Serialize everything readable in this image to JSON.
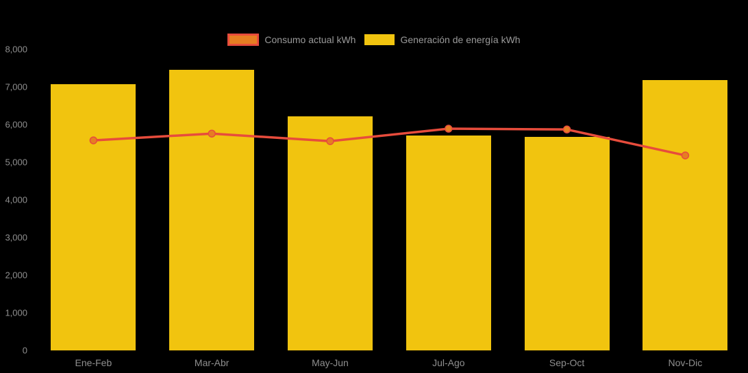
{
  "page": {
    "background": "#000000",
    "axis_text_color": "#8f8f8f",
    "legend_text_color": "#9a9a9a"
  },
  "legend": {
    "items": [
      {
        "label": "Consumo actual kWh",
        "series_type": "line",
        "swatch_fill": "#E67E22",
        "swatch_border": "#E74C3C"
      },
      {
        "label": "Generación de energía kWh",
        "series_type": "bar",
        "swatch_fill": "#F1C40F",
        "swatch_border": ""
      }
    ]
  },
  "chart_data": {
    "type": "bar",
    "subtype": "bar-with-line-overlay",
    "title": "",
    "xlabel": "",
    "ylabel": "",
    "categories": [
      "Ene-Feb",
      "Mar-Abr",
      "May-Jun",
      "Jul-Ago",
      "Sep-Oct",
      "Nov-Dic"
    ],
    "series": [
      {
        "name": "Generación de energía kWh",
        "type": "bar",
        "color": "#F1C40F",
        "values": [
          7070,
          7450,
          6220,
          5710,
          5670,
          7180
        ]
      },
      {
        "name": "Consumo actual kWh",
        "type": "line",
        "color": "#E74C3C",
        "marker_fill": "#E67E22",
        "marker_stroke": "#E74C3C",
        "values": [
          5580,
          5760,
          5560,
          5890,
          5870,
          5180
        ]
      }
    ],
    "ylim": [
      0,
      8000
    ],
    "yticks": [
      {
        "value": 0,
        "label": "0"
      },
      {
        "value": 1000,
        "label": "1,000"
      },
      {
        "value": 2000,
        "label": "2,000"
      },
      {
        "value": 3000,
        "label": "3,000"
      },
      {
        "value": 4000,
        "label": "4,000"
      },
      {
        "value": 5000,
        "label": "5,000"
      },
      {
        "value": 6000,
        "label": "6,000"
      },
      {
        "value": 7000,
        "label": "7,000"
      },
      {
        "value": 8000,
        "label": "8,000"
      }
    ],
    "grid": false,
    "legend_position": "top-center"
  }
}
